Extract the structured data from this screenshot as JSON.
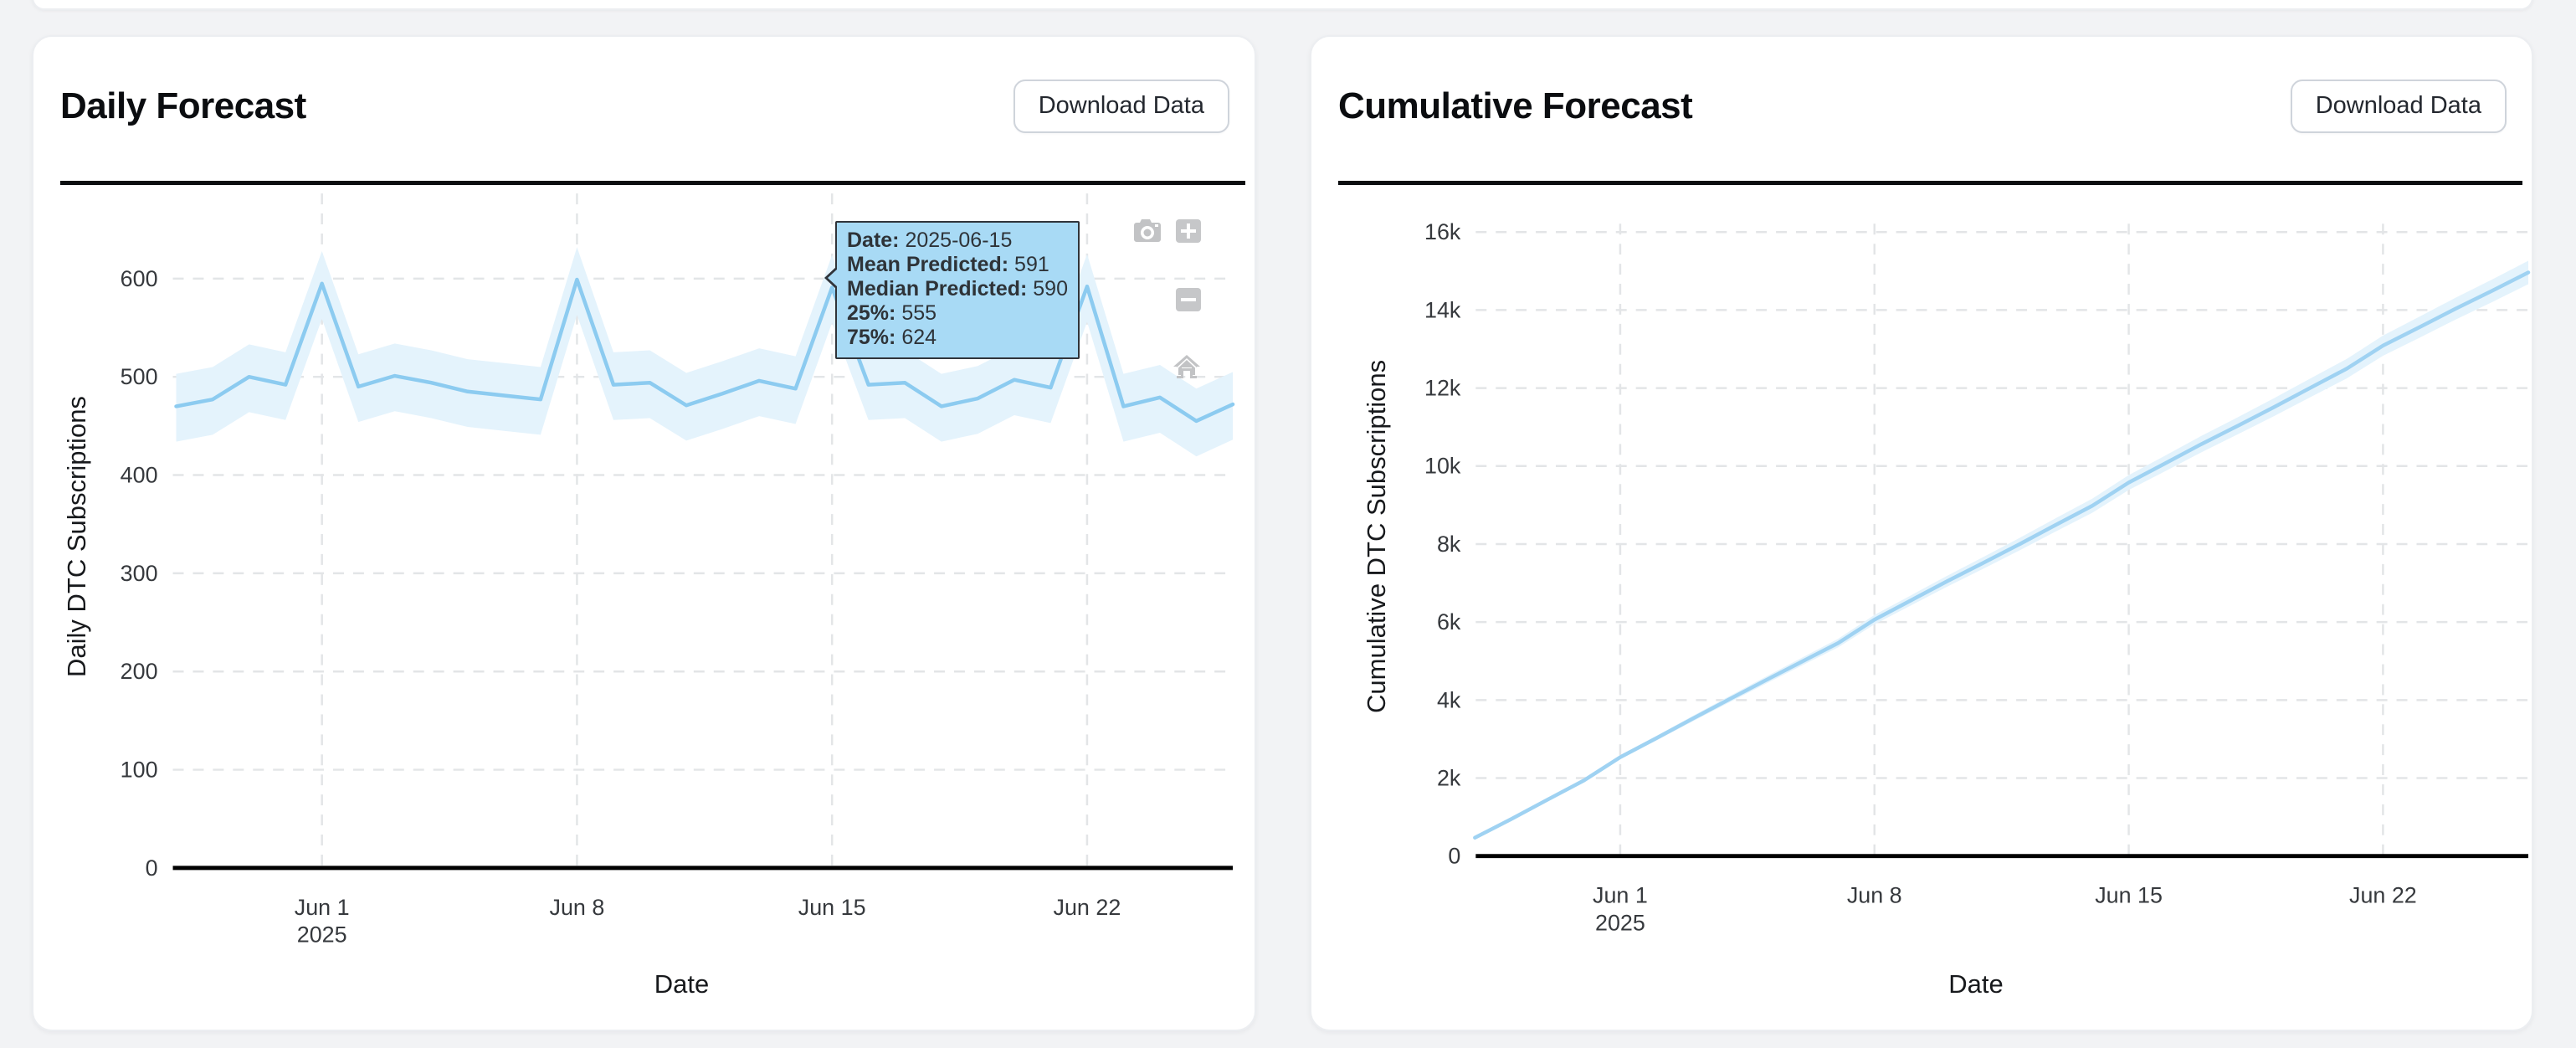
{
  "page": {
    "background_color": "#f2f3f5",
    "card_color": "#ffffff"
  },
  "cards": [
    {
      "title": "Daily Forecast",
      "download_label": "Download Data"
    },
    {
      "title": "Cumulative Forecast",
      "download_label": "Download Data"
    }
  ],
  "modebar": {
    "icons": [
      "camera-icon",
      "zoom-in-icon",
      "zoom-out-icon",
      "home-icon"
    ]
  },
  "tooltip": {
    "rows": [
      {
        "label": "Date:",
        "value": "2025-06-15"
      },
      {
        "label": "Mean Predicted:",
        "value": "591"
      },
      {
        "label": "Median Predicted:",
        "value": "590"
      },
      {
        "label": "25%:",
        "value": "555"
      },
      {
        "label": "75%:",
        "value": "624"
      }
    ],
    "background": "#a8daf5",
    "border_color": "#30343a"
  },
  "chart_data": [
    {
      "type": "line",
      "title": "Daily Forecast",
      "xlabel": "Date",
      "ylabel": "Daily DTC Subscriptions",
      "line_color": "#8ccbf0",
      "band_color": "#e4f3fc",
      "grid": true,
      "legend": "none",
      "ylim": [
        0,
        660
      ],
      "yticks": [
        0,
        100,
        200,
        300,
        400,
        500,
        600
      ],
      "ytick_labels": [
        "0",
        "100",
        "200",
        "300",
        "400",
        "500",
        "600"
      ],
      "xticks": [
        "2025-06-01",
        "2025-06-08",
        "2025-06-15",
        "2025-06-22"
      ],
      "xtick_labels": [
        [
          "Jun 1",
          "2025"
        ],
        [
          "Jun 8"
        ],
        [
          "Jun 15"
        ],
        [
          "Jun 22"
        ]
      ],
      "x": [
        "2025-05-28",
        "2025-05-29",
        "2025-05-30",
        "2025-05-31",
        "2025-06-01",
        "2025-06-02",
        "2025-06-03",
        "2025-06-04",
        "2025-06-05",
        "2025-06-06",
        "2025-06-07",
        "2025-06-08",
        "2025-06-09",
        "2025-06-10",
        "2025-06-11",
        "2025-06-12",
        "2025-06-13",
        "2025-06-14",
        "2025-06-15",
        "2025-06-16",
        "2025-06-17",
        "2025-06-18",
        "2025-06-19",
        "2025-06-20",
        "2025-06-21",
        "2025-06-22",
        "2025-06-23",
        "2025-06-24",
        "2025-06-25",
        "2025-06-26"
      ],
      "series": [
        {
          "name": "Mean Predicted",
          "values": [
            470,
            477,
            500,
            492,
            595,
            490,
            501,
            494,
            485,
            481,
            477,
            599,
            492,
            494,
            471,
            483,
            496,
            488,
            591,
            492,
            494,
            470,
            478,
            497,
            489,
            592,
            470,
            479,
            455,
            472
          ]
        },
        {
          "name": "25%",
          "values": [
            434,
            441,
            464,
            456,
            559,
            454,
            465,
            458,
            449,
            445,
            441,
            563,
            456,
            458,
            435,
            447,
            460,
            452,
            555,
            456,
            458,
            434,
            442,
            461,
            453,
            556,
            434,
            443,
            419,
            436
          ]
        },
        {
          "name": "75%",
          "values": [
            503,
            510,
            533,
            525,
            628,
            523,
            534,
            527,
            518,
            514,
            510,
            632,
            525,
            527,
            504,
            516,
            529,
            521,
            624,
            525,
            527,
            503,
            511,
            530,
            522,
            625,
            503,
            512,
            488,
            505
          ]
        }
      ]
    },
    {
      "type": "line",
      "title": "Cumulative Forecast",
      "xlabel": "Date",
      "ylabel": "Cumulative DTC Subscriptions",
      "line_color": "#9fd2f2",
      "band_color": "#e4f3fc",
      "grid": true,
      "legend": "none",
      "ylim": [
        0,
        16600
      ],
      "yticks": [
        0,
        2000,
        4000,
        6000,
        8000,
        10000,
        12000,
        14000,
        16000
      ],
      "ytick_labels": [
        "0",
        "2k",
        "4k",
        "6k",
        "8k",
        "10k",
        "12k",
        "14k",
        "16k"
      ],
      "xticks": [
        "2025-06-01",
        "2025-06-08",
        "2025-06-15",
        "2025-06-22"
      ],
      "xtick_labels": [
        [
          "Jun 1",
          "2025"
        ],
        [
          "Jun 8"
        ],
        [
          "Jun 15"
        ],
        [
          "Jun 22"
        ]
      ],
      "x": [
        "2025-05-28",
        "2025-05-29",
        "2025-05-30",
        "2025-05-31",
        "2025-06-01",
        "2025-06-02",
        "2025-06-03",
        "2025-06-04",
        "2025-06-05",
        "2025-06-06",
        "2025-06-07",
        "2025-06-08",
        "2025-06-09",
        "2025-06-10",
        "2025-06-11",
        "2025-06-12",
        "2025-06-13",
        "2025-06-14",
        "2025-06-15",
        "2025-06-16",
        "2025-06-17",
        "2025-06-18",
        "2025-06-19",
        "2025-06-20",
        "2025-06-21",
        "2025-06-22",
        "2025-06-23",
        "2025-06-24",
        "2025-06-25",
        "2025-06-26"
      ],
      "series": [
        {
          "name": "Mean Predicted",
          "values": [
            470,
            947,
            1447,
            1939,
            2534,
            3024,
            3525,
            4019,
            4504,
            4985,
            5462,
            6061,
            6553,
            7047,
            7518,
            8001,
            8497,
            8985,
            9576,
            10068,
            10562,
            11032,
            11510,
            12007,
            12496,
            13088,
            13558,
            14037,
            14492,
            14964
          ]
        },
        {
          "name": "25%",
          "values": [
            460,
            927,
            1417,
            1899,
            2484,
            2964,
            3455,
            3939,
            4414,
            4885,
            5352,
            5941,
            6423,
            6907,
            7368,
            7841,
            8327,
            8805,
            9386,
            9868,
            10352,
            10812,
            11280,
            11767,
            12246,
            12828,
            13288,
            13757,
            14202,
            14664
          ]
        },
        {
          "name": "75%",
          "values": [
            480,
            967,
            1477,
            1979,
            2584,
            3084,
            3595,
            4099,
            4594,
            5085,
            5572,
            6181,
            6683,
            7187,
            7668,
            8161,
            8667,
            9165,
            9766,
            10268,
            10772,
            11252,
            11740,
            12247,
            12746,
            13348,
            13828,
            14317,
            14782,
            15264
          ]
        }
      ]
    }
  ]
}
